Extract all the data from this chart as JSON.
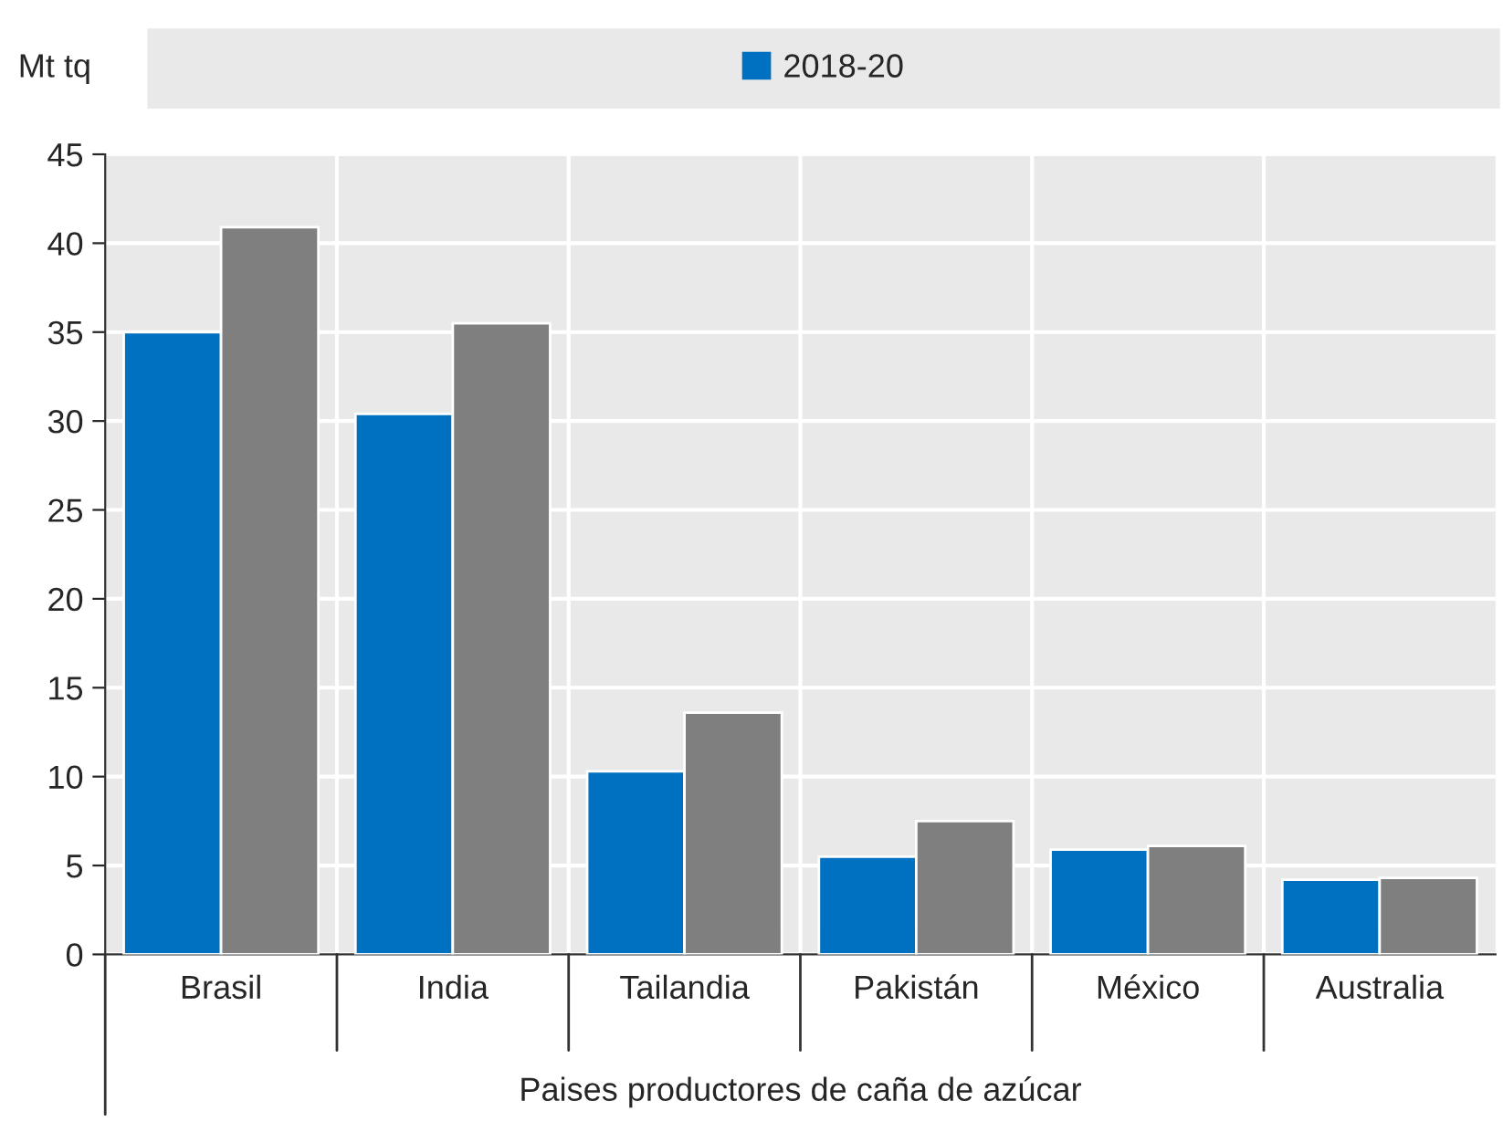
{
  "chart_data": {
    "type": "bar",
    "ylabel": "Mt tq",
    "xlabel": "Paises productores de caña de azúcar",
    "categories": [
      "Brasil",
      "India",
      "Tailandia",
      "Pakistán",
      "México",
      "Australia"
    ],
    "series": [
      {
        "name": "2018-20",
        "color": "#0070c0",
        "values": [
          35,
          30.4,
          10.3,
          5.5,
          5.9,
          4.2
        ]
      },
      {
        "color": "#7f7f7f",
        "values": [
          40.9,
          35.5,
          13.6,
          7.5,
          6.1,
          4.3
        ]
      }
    ],
    "ylim": [
      0,
      45
    ],
    "yticks": [
      0,
      5,
      10,
      15,
      20,
      25,
      30,
      35,
      40,
      45
    ],
    "grid": true,
    "legend": "top"
  }
}
